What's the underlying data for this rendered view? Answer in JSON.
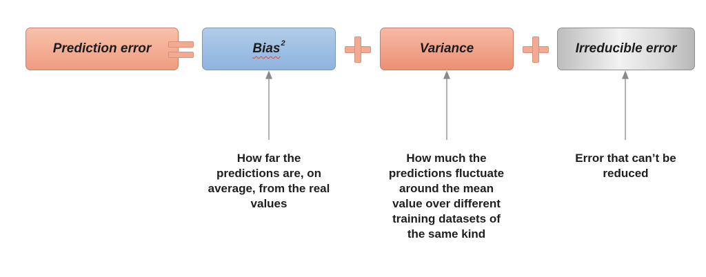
{
  "equation": {
    "prediction_error": "Prediction error",
    "bias_label": "Bias",
    "bias_superscript": "2",
    "variance": "Variance",
    "irreducible_error": "Irreducible error",
    "operators": [
      "equals-icon",
      "plus-icon",
      "plus-icon"
    ]
  },
  "captions": {
    "bias": "How far the predictions are, on average, from the real values",
    "variance": "How much the predictions fluctuate around the mean value over different training datasets of the same kind",
    "irreducible": "Error that can’t be reduced"
  },
  "colors": {
    "prediction_box": "#ef9c81",
    "bias_box": "#8db3df",
    "variance_box": "#ec9075",
    "irreducible_box": "#d9d9d9",
    "operator": "#f2ab92",
    "arrow": "#8a8a8a"
  }
}
